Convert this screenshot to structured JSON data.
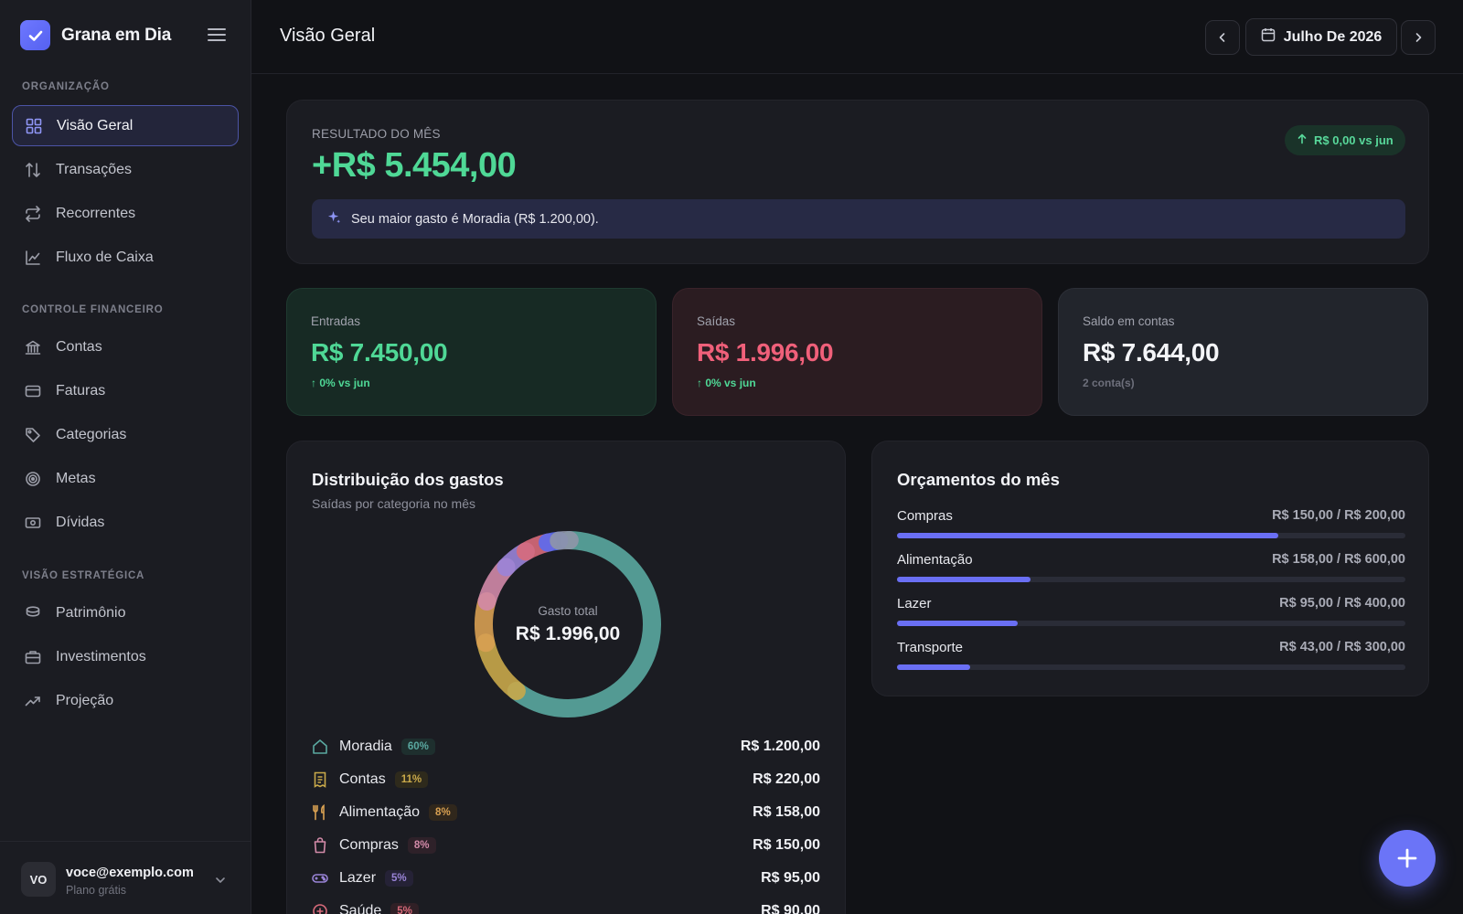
{
  "brand": {
    "name": "Grana em Dia"
  },
  "sidebar": {
    "sections": [
      {
        "label": "ORGANIZAÇÃO"
      },
      {
        "label": "CONTROLE FINANCEIRO"
      },
      {
        "label": "VISÃO ESTRATÉGICA"
      }
    ],
    "items": [
      {
        "label": "Visão Geral",
        "icon": "grid-icon",
        "active": true
      },
      {
        "label": "Transações",
        "icon": "arrows-up-down-icon"
      },
      {
        "label": "Recorrentes",
        "icon": "repeat-icon"
      },
      {
        "label": "Fluxo de Caixa",
        "icon": "line-chart-icon"
      },
      {
        "label": "Contas",
        "icon": "bank-icon"
      },
      {
        "label": "Faturas",
        "icon": "credit-card-icon"
      },
      {
        "label": "Categorias",
        "icon": "tag-icon"
      },
      {
        "label": "Metas",
        "icon": "target-icon"
      },
      {
        "label": "Dívidas",
        "icon": "banknote-icon"
      },
      {
        "label": "Patrimônio",
        "icon": "coins-icon"
      },
      {
        "label": "Investimentos",
        "icon": "briefcase-icon"
      },
      {
        "label": "Projeção",
        "icon": "trend-up-icon"
      }
    ]
  },
  "user": {
    "initials": "VO",
    "email": "voce@exemplo.com",
    "plan": "Plano grátis"
  },
  "header": {
    "title": "Visão Geral",
    "month": "Julho De 2026"
  },
  "result": {
    "label": "RESULTADO DO MÊS",
    "value": "+R$ 5.454,00",
    "badge": "R$ 0,00 vs jun",
    "insight": "Seu maior gasto é Moradia (R$ 1.200,00)."
  },
  "stats": {
    "entradas": {
      "label": "Entradas",
      "value": "R$ 7.450,00",
      "sub": "↑ 0% vs jun"
    },
    "saidas": {
      "label": "Saídas",
      "value": "R$ 1.996,00",
      "sub": "↑ 0% vs jun"
    },
    "saldo": {
      "label": "Saldo em contas",
      "value": "R$ 7.644,00",
      "sub": "2 conta(s)"
    }
  },
  "distribution": {
    "title": "Distribuição dos gastos",
    "subtitle": "Saídas por categoria no mês",
    "center_label": "Gasto total",
    "center_value": "R$ 1.996,00",
    "categories": [
      {
        "name": "Moradia",
        "pct": "60%",
        "amount": "R$ 1.200,00",
        "icon": "home-icon",
        "color": "#5aa8a0"
      },
      {
        "name": "Contas",
        "pct": "11%",
        "amount": "R$ 220,00",
        "icon": "receipt-icon",
        "color": "#c9a94a"
      },
      {
        "name": "Alimentação",
        "pct": "8%",
        "amount": "R$ 158,00",
        "icon": "utensils-icon",
        "color": "#d8a052"
      },
      {
        "name": "Compras",
        "pct": "8%",
        "amount": "R$ 150,00",
        "icon": "shopping-bag-icon",
        "color": "#d28aa8"
      },
      {
        "name": "Lazer",
        "pct": "5%",
        "amount": "R$ 95,00",
        "icon": "gamepad-icon",
        "color": "#9a84d8"
      },
      {
        "name": "Saúde",
        "pct": "5%",
        "amount": "R$ 90,00",
        "icon": "health-icon",
        "color": "#d86a7a"
      }
    ],
    "donut_extra": [
      {
        "value": 43,
        "color": "#5b6cf0"
      },
      {
        "value": 40,
        "color": "#8f96a8"
      }
    ]
  },
  "budgets": {
    "title": "Orçamentos do mês",
    "items": [
      {
        "name": "Compras",
        "amount": "R$ 150,00 / R$ 200,00",
        "spent": 150,
        "limit": 200
      },
      {
        "name": "Alimentação",
        "amount": "R$ 158,00 / R$ 600,00",
        "spent": 158,
        "limit": 600
      },
      {
        "name": "Lazer",
        "amount": "R$ 95,00 / R$ 400,00",
        "spent": 95,
        "limit": 400
      },
      {
        "name": "Transporte",
        "amount": "R$ 43,00 / R$ 300,00",
        "spent": 43,
        "limit": 300
      }
    ]
  },
  "colors": {
    "accent": "#6b74f7",
    "positive": "#4fd896",
    "negative": "#f0607a"
  }
}
